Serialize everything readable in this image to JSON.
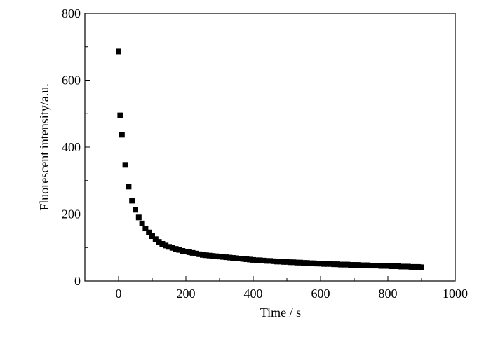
{
  "chart_data": {
    "type": "scatter",
    "title": "",
    "xlabel": "Time / s",
    "ylabel": "Fluorescent intensity/a.u.",
    "xlim": [
      -100,
      1000
    ],
    "ylim": [
      0,
      800
    ],
    "xticks": [
      0,
      200,
      400,
      600,
      800,
      1000
    ],
    "yticks": [
      0,
      200,
      400,
      600,
      800
    ],
    "xtick_labels": [
      "0",
      "200",
      "400",
      "600",
      "800",
      "1000"
    ],
    "ytick_labels": [
      "0",
      "200",
      "400",
      "600",
      "800"
    ],
    "grid": false,
    "legend": "none",
    "marker": "square",
    "marker_color": "#000000",
    "series": [
      {
        "x": [
          0,
          5,
          10,
          20,
          30,
          40,
          50,
          60,
          70,
          80,
          90,
          100,
          110,
          120,
          130,
          140,
          150,
          160,
          170,
          180,
          190,
          200,
          210,
          220,
          230,
          240,
          250,
          260,
          270,
          280,
          290,
          300,
          310,
          320,
          330,
          340,
          350,
          360,
          370,
          380,
          390,
          400,
          410,
          420,
          430,
          440,
          450,
          460,
          470,
          480,
          490,
          500,
          510,
          520,
          530,
          540,
          550,
          560,
          570,
          580,
          590,
          600,
          610,
          620,
          630,
          640,
          650,
          660,
          670,
          680,
          690,
          700,
          710,
          720,
          730,
          740,
          750,
          760,
          770,
          780,
          790,
          800,
          810,
          820,
          830,
          840,
          850,
          860,
          870,
          880,
          890,
          900
        ],
        "y": [
          686,
          495,
          437,
          347,
          282,
          240,
          213,
          190,
          172,
          157,
          145,
          134,
          125,
          117,
          111,
          106,
          102,
          99,
          96,
          93,
          90,
          88,
          86,
          84,
          82,
          80,
          78,
          77,
          76,
          75,
          74,
          73,
          72,
          71,
          70,
          69,
          68,
          67,
          66,
          65,
          64,
          63,
          62,
          62,
          61,
          60,
          60,
          59,
          58,
          58,
          57,
          57,
          56,
          56,
          55,
          55,
          54,
          54,
          53,
          53,
          52,
          52,
          51,
          51,
          51,
          50,
          50,
          49,
          49,
          49,
          48,
          48,
          48,
          47,
          47,
          47,
          46,
          46,
          46,
          45,
          45,
          45,
          44,
          44,
          44,
          43,
          43,
          43,
          42,
          42,
          42,
          41
        ]
      }
    ]
  }
}
